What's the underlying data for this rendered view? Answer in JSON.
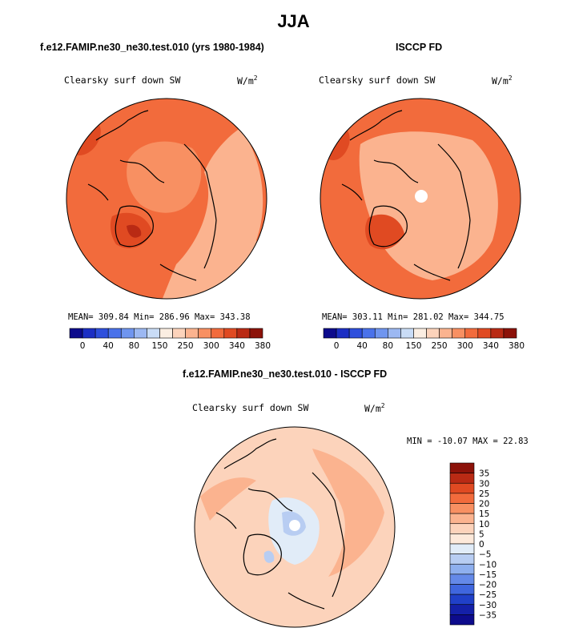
{
  "page_title": "JJA",
  "panels": [
    {
      "title": "f.e12.FAMIP.ne30_ne30.test.010 (yrs 1980-1984)",
      "variable": "Clearsky surf down SW",
      "units": "W/m",
      "units_exp": "2",
      "stats": "MEAN= 309.84  Min= 286.96  Max= 343.38"
    },
    {
      "title": "ISCCP FD",
      "variable": "Clearsky surf down SW",
      "units": "W/m",
      "units_exp": "2",
      "stats": "MEAN= 303.11  Min= 281.02  Max= 344.75"
    },
    {
      "title": "f.e12.FAMIP.ne30_ne30.test.010 - ISCCP FD",
      "variable": "Clearsky surf down SW",
      "units": "W/m",
      "units_exp": "2",
      "minmax": "MIN = -10.07 MAX =  22.83"
    }
  ],
  "chart_data": [
    {
      "type": "heatmap",
      "projection": "north-polar-stereographic",
      "title": "f.e12.FAMIP.ne30_ne30.test.010 (yrs 1980-1984)",
      "variable": "Clearsky surf down SW",
      "units": "W/m^2",
      "mean": 309.84,
      "min": 286.96,
      "max": 343.38,
      "colorbar_levels": [
        0,
        20,
        40,
        60,
        80,
        100,
        150,
        200,
        250,
        270,
        300,
        320,
        340,
        360,
        380
      ],
      "colorbar_labels": [
        "0",
        "40",
        "80",
        "150",
        "250",
        "300",
        "340",
        "380"
      ],
      "colorbar_colors": [
        "#0d0b8c",
        "#1c2fc4",
        "#2e4fdc",
        "#4a72ea",
        "#6f95ef",
        "#9cb8f2",
        "#c9dcf6",
        "#fbeee2",
        "#fcd3bb",
        "#fbb38f",
        "#f89062",
        "#f26b3c",
        "#e04a22",
        "#b92a14",
        "#8c1209"
      ]
    },
    {
      "type": "heatmap",
      "projection": "north-polar-stereographic",
      "title": "ISCCP FD",
      "variable": "Clearsky surf down SW",
      "units": "W/m^2",
      "mean": 303.11,
      "min": 281.02,
      "max": 344.75,
      "colorbar_levels": [
        0,
        20,
        40,
        60,
        80,
        100,
        150,
        200,
        250,
        270,
        300,
        320,
        340,
        360,
        380
      ],
      "colorbar_labels": [
        "0",
        "40",
        "80",
        "150",
        "250",
        "300",
        "340",
        "380"
      ],
      "colorbar_colors": [
        "#0d0b8c",
        "#1c2fc4",
        "#2e4fdc",
        "#4a72ea",
        "#6f95ef",
        "#9cb8f2",
        "#c9dcf6",
        "#fbeee2",
        "#fcd3bb",
        "#fbb38f",
        "#f89062",
        "#f26b3c",
        "#e04a22",
        "#b92a14",
        "#8c1209"
      ]
    },
    {
      "type": "heatmap",
      "projection": "north-polar-stereographic",
      "title": "f.e12.FAMIP.ne30_ne30.test.010 - ISCCP FD",
      "variable": "Clearsky surf down SW",
      "units": "W/m^2",
      "min": -10.07,
      "max": 22.83,
      "colorbar_levels": [
        35,
        30,
        25,
        20,
        15,
        10,
        5,
        0,
        -5,
        -10,
        -15,
        -20,
        -25,
        -30,
        -35
      ],
      "colorbar_labels": [
        "35",
        "30",
        "25",
        "20",
        "15",
        "10",
        "5",
        "0",
        "−5",
        "−10",
        "−15",
        "−20",
        "−25",
        "−30",
        "−35"
      ],
      "colorbar_colors": [
        "#8c1209",
        "#b92a14",
        "#e04a22",
        "#f26b3c",
        "#f89062",
        "#fbb38f",
        "#fcd3bb",
        "#fde9da",
        "#e1ecf8",
        "#b8cdf2",
        "#8eafee",
        "#6489e8",
        "#3f66de",
        "#2040c8",
        "#1420a8",
        "#0d0b8c"
      ]
    }
  ]
}
